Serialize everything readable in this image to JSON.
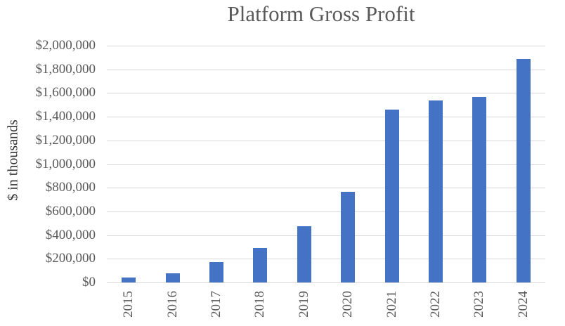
{
  "chart_data": {
    "type": "bar",
    "title": "Platform Gross Profit",
    "xlabel": "",
    "ylabel": "$ in thousands",
    "categories": [
      "2015",
      "2016",
      "2017",
      "2018",
      "2019",
      "2020",
      "2021",
      "2022",
      "2023",
      "2024"
    ],
    "values": [
      40000,
      77000,
      172000,
      291000,
      475000,
      765000,
      1460000,
      1537000,
      1567000,
      1887000
    ],
    "ylim": [
      0,
      2000000
    ],
    "yticks": [
      0,
      200000,
      400000,
      600000,
      800000,
      1000000,
      1200000,
      1400000,
      1600000,
      1800000,
      2000000
    ],
    "ytick_labels": [
      "$0",
      "$200,000",
      "$400,000",
      "$600,000",
      "$800,000",
      "$1,000,000",
      "$1,200,000",
      "$1,400,000",
      "$1,600,000",
      "$1,800,000",
      "$2,000,000"
    ],
    "grid": true,
    "legend": null,
    "bar_color": "#4472c4",
    "grid_color": "#d9d9d9",
    "text_color": "#595959"
  }
}
